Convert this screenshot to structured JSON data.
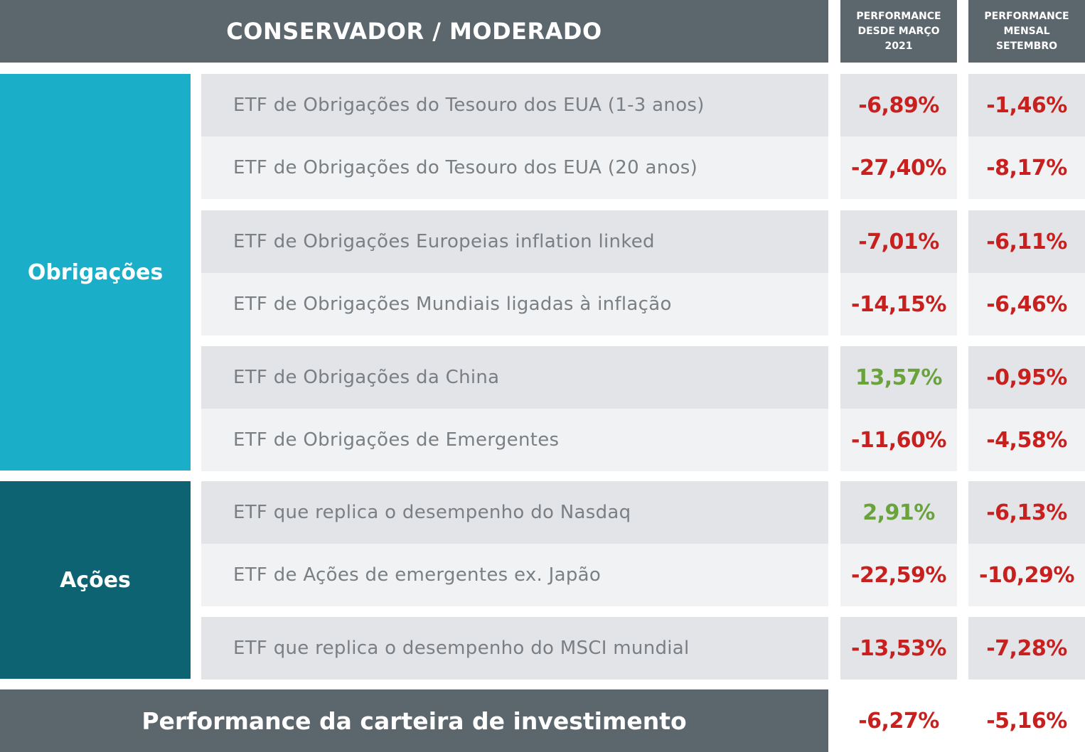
{
  "header": {
    "title": "CONSERVADOR / MODERADO",
    "col1": [
      "PERFORMANCE",
      "DESDE MARÇO",
      "2021"
    ],
    "col2": [
      "PERFORMANCE",
      "MENSAL",
      "SETEMBRO"
    ]
  },
  "colors": {
    "header": "#5c666d",
    "obrigacoes": "#1aaec8",
    "acoes": "#0e6373",
    "negative": "#c8201e",
    "positive": "#6aa23c"
  },
  "categories": [
    {
      "label": "Obrigações"
    },
    {
      "label": "Ações"
    }
  ],
  "rows": [
    {
      "name": "ETF de Obrigações do Tesouro dos EUA (1-3 anos)",
      "since": "-6,89%",
      "monthly": "-1,46%"
    },
    {
      "name": "ETF de Obrigações do Tesouro dos EUA (20 anos)",
      "since": "-27,40%",
      "monthly": "-8,17%"
    },
    {
      "name": "ETF de Obrigações Europeias inflation linked",
      "since": "-7,01%",
      "monthly": "-6,11%"
    },
    {
      "name": "ETF de Obrigações Mundiais ligadas à inflação",
      "since": "-14,15%",
      "monthly": "-6,46%"
    },
    {
      "name": "ETF de Obrigações da China",
      "since": "13,57%",
      "monthly": "-0,95%"
    },
    {
      "name": "ETF de Obrigações de Emergentes",
      "since": "-11,60%",
      "monthly": "-4,58%"
    },
    {
      "name": "ETF que replica o desempenho do Nasdaq",
      "since": "2,91%",
      "monthly": "-6,13%"
    },
    {
      "name": "ETF de Ações de emergentes ex. Japão",
      "since": "-22,59%",
      "monthly": "-10,29%"
    },
    {
      "name": "ETF que replica o desempenho do MSCI mundial",
      "since": "-13,53%",
      "monthly": "-7,28%"
    }
  ],
  "footer": {
    "label": "Performance da carteira de investimento",
    "since": "-6,27%",
    "monthly": "-5,16%"
  }
}
